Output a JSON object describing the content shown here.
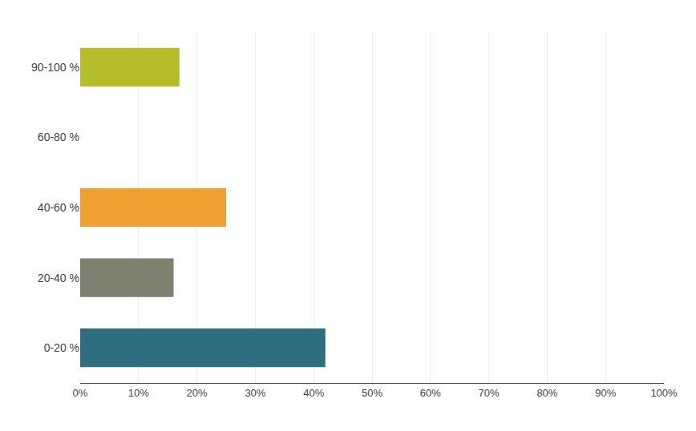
{
  "chart_data": {
    "type": "bar",
    "orientation": "horizontal",
    "categories": [
      "0-20 %",
      "20-40 %",
      "40-60 %",
      "60-80 %",
      "90-100 %"
    ],
    "values": [
      42,
      16,
      25,
      0,
      17
    ],
    "colors": [
      "#2e6e80",
      "#7f8070",
      "#f0a030",
      "#b5bd2b",
      "#b5bd2b"
    ],
    "xlim": [
      0,
      100
    ],
    "xticks": [
      {
        "value": 0,
        "label": "0%"
      },
      {
        "value": 10,
        "label": "10%"
      },
      {
        "value": 20,
        "label": "20%"
      },
      {
        "value": 30,
        "label": "30%"
      },
      {
        "value": 40,
        "label": "40%"
      },
      {
        "value": 50,
        "label": "50%"
      },
      {
        "value": 60,
        "label": "60%"
      },
      {
        "value": 70,
        "label": "70%"
      },
      {
        "value": 80,
        "label": "80%"
      },
      {
        "value": 90,
        "label": "90%"
      },
      {
        "value": 100,
        "label": "100%"
      }
    ],
    "grid": true
  }
}
